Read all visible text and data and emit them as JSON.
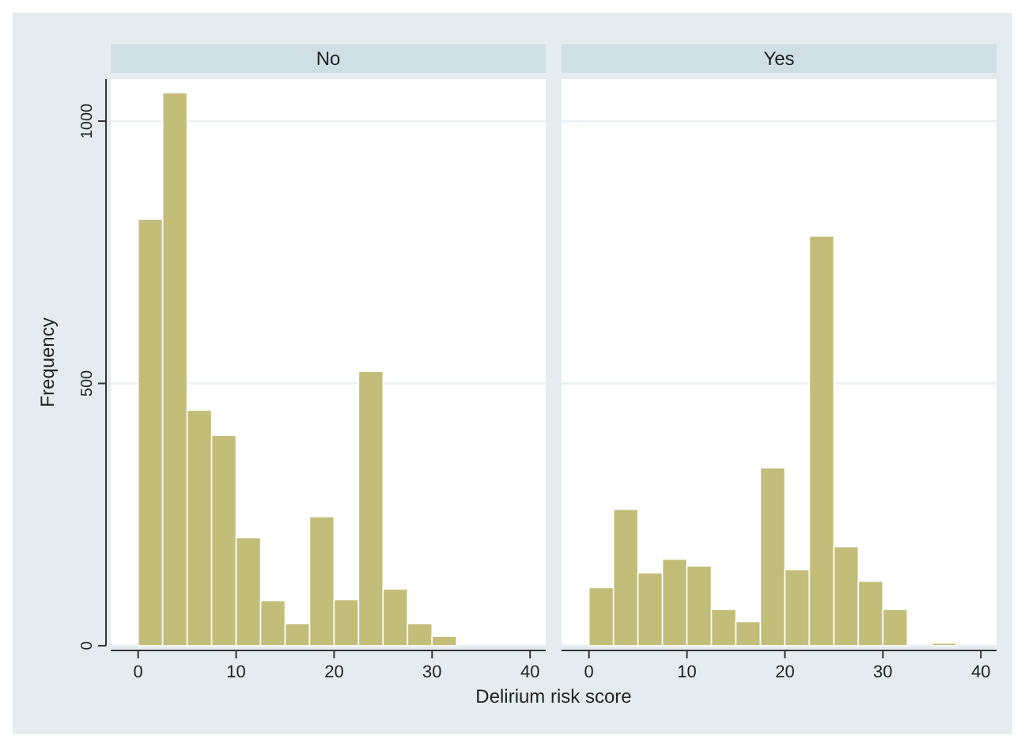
{
  "chart_data": [
    {
      "type": "histogram",
      "title": "No",
      "xlabel": "Delirium risk score",
      "ylabel": "Frequency",
      "bins": [
        0,
        2.5,
        5,
        7.5,
        10,
        12.5,
        15,
        17.5,
        20,
        22.5,
        25,
        27.5,
        30,
        32.5,
        35,
        37.5,
        40
      ],
      "values": [
        813,
        1054,
        449,
        401,
        206,
        86,
        42,
        246,
        88,
        523,
        108,
        42,
        18,
        null,
        null,
        0
      ],
      "color": "#c2bd78",
      "xlim": [
        -2.8,
        41.6
      ],
      "ylim": [
        0,
        1080
      ],
      "xticks": [
        0,
        10,
        20,
        30,
        40
      ],
      "yticks": [
        0,
        500,
        1000
      ],
      "grid": "y"
    },
    {
      "type": "histogram",
      "title": "Yes",
      "bins": [
        0,
        2.5,
        5,
        7.5,
        10,
        12.5,
        15,
        17.5,
        20,
        22.5,
        25,
        27.5,
        30,
        32.5,
        35,
        37.5,
        40
      ],
      "values": [
        111,
        260,
        139,
        165,
        152,
        69,
        46,
        339,
        145,
        781,
        189,
        123,
        69,
        0,
        5,
        0
      ],
      "color": "#c2bd78",
      "xlim": [
        -2.8,
        41.6
      ],
      "ylim": [
        0,
        1080
      ],
      "xticks": [
        0,
        10,
        20,
        30,
        40
      ],
      "yticks": [
        0,
        500,
        1000
      ],
      "grid": "y",
      "tick_labels": "x"
    }
  ]
}
